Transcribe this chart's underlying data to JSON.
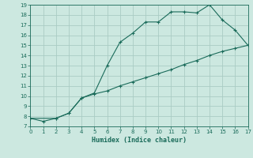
{
  "xlabel": "Humidex (Indice chaleur)",
  "line1_x": [
    0,
    1,
    2,
    3,
    4,
    5,
    6,
    7,
    8,
    9,
    10,
    11,
    12,
    13,
    14,
    15,
    16,
    17
  ],
  "line1_y": [
    7.8,
    7.5,
    7.8,
    8.3,
    9.8,
    10.3,
    13.0,
    15.3,
    16.2,
    17.3,
    17.3,
    18.3,
    18.3,
    18.2,
    19.0,
    17.5,
    16.5,
    15.0
  ],
  "line2_x": [
    0,
    2,
    3,
    4,
    5,
    6,
    7,
    8,
    9,
    10,
    11,
    12,
    13,
    14,
    15,
    16,
    17
  ],
  "line2_y": [
    7.8,
    7.8,
    8.3,
    9.8,
    10.2,
    10.5,
    11.0,
    11.4,
    11.8,
    12.2,
    12.6,
    13.1,
    13.5,
    14.0,
    14.4,
    14.7,
    15.0
  ],
  "line_color": "#1a6b5a",
  "bg_color": "#cce8e0",
  "grid_color": "#aaccC4",
  "xlim": [
    0,
    17
  ],
  "ylim": [
    7,
    19
  ],
  "xticks": [
    0,
    1,
    2,
    3,
    4,
    5,
    6,
    7,
    8,
    9,
    10,
    11,
    12,
    13,
    14,
    15,
    16,
    17
  ],
  "yticks": [
    7,
    8,
    9,
    10,
    11,
    12,
    13,
    14,
    15,
    16,
    17,
    18,
    19
  ]
}
